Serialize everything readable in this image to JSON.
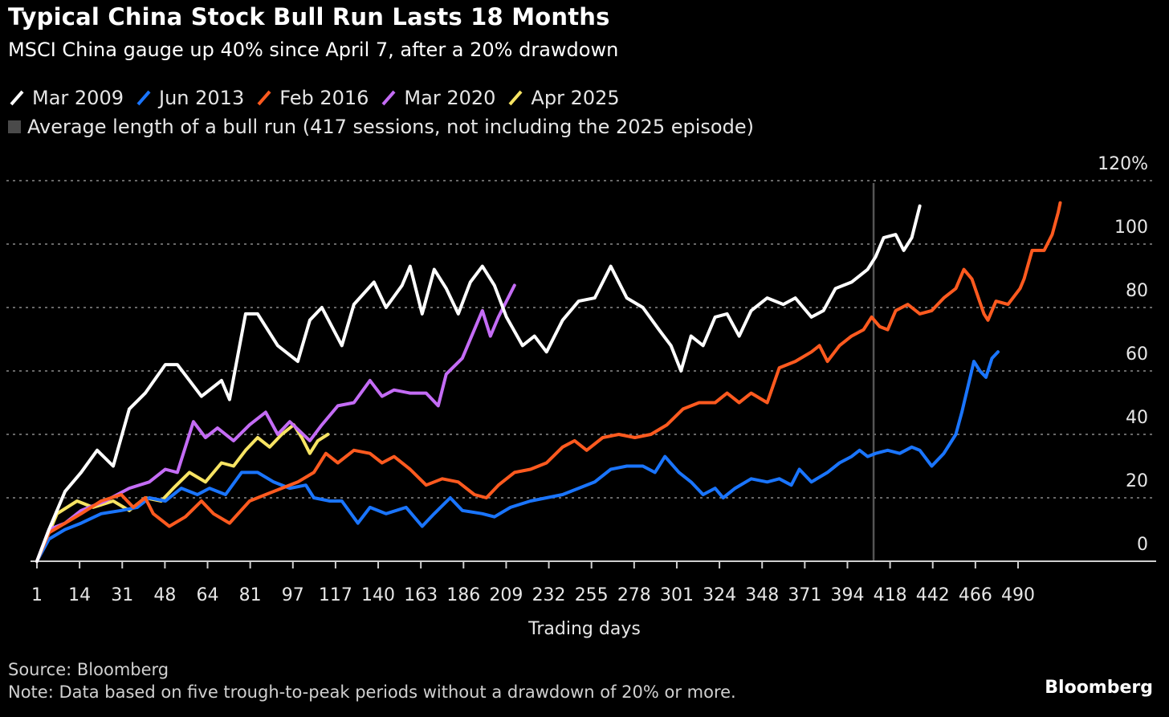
{
  "chart_data": {
    "type": "line",
    "title": "Typical China Stock Bull Run Lasts 18 Months",
    "subtitle": "MSCI China gauge up 40% since April 7, after a 20% drawdown",
    "xlabel": "Trading days",
    "ylabel": "",
    "xlim": [
      1,
      490
    ],
    "ylim": [
      0,
      120
    ],
    "x_ticks": [
      "1",
      "14",
      "31",
      "48",
      "64",
      "81",
      "97",
      "117",
      "140",
      "163",
      "186",
      "209",
      "232",
      "255",
      "278",
      "301",
      "324",
      "348",
      "371",
      "394",
      "418",
      "442",
      "466",
      "490"
    ],
    "y_ticks": [
      {
        "value": 0,
        "label": "0"
      },
      {
        "value": 20,
        "label": "20"
      },
      {
        "value": 40,
        "label": "40"
      },
      {
        "value": 60,
        "label": "60"
      },
      {
        "value": 80,
        "label": "80"
      },
      {
        "value": 100,
        "label": "100"
      },
      {
        "value": 120,
        "label": "120%"
      }
    ],
    "grid": true,
    "legend_placement": "top-left",
    "average_marker": {
      "label": "Average length of a bull run (417 sessions, not including the 2025 episode)",
      "day": 418,
      "color": "#4a4a4a"
    },
    "series": [
      {
        "name": "Apr 2025",
        "color": "#f7e463",
        "x": [
          1,
          11,
          21,
          29,
          39,
          47,
          55,
          63,
          69,
          77,
          85,
          93,
          99,
          105,
          111,
          117,
          123,
          129,
          133,
          137,
          141,
          146
        ],
        "y": [
          0,
          15,
          19,
          17,
          19,
          16,
          20,
          19,
          23,
          28,
          25,
          31,
          30,
          35,
          39,
          36,
          40,
          43,
          39,
          34,
          38,
          40
        ]
      },
      {
        "name": "Mar 2020",
        "color": "#c46cf5",
        "x": [
          1,
          7,
          15,
          23,
          35,
          47,
          57,
          65,
          71,
          79,
          85,
          91,
          99,
          107,
          115,
          121,
          127,
          137,
          143,
          151,
          159,
          167,
          173,
          179,
          187,
          195,
          201,
          205,
          213,
          219,
          223,
          227,
          231,
          235,
          239
        ],
        "y": [
          0,
          10,
          12,
          16,
          19,
          23,
          25,
          29,
          28,
          44,
          39,
          42,
          38,
          43,
          47,
          40,
          44,
          38,
          43,
          49,
          50,
          57,
          52,
          54,
          53,
          53,
          49,
          59,
          64,
          73,
          79,
          71,
          77,
          82,
          87
        ]
      },
      {
        "name": "Jun 2013",
        "color": "#1a75ff",
        "x": [
          1,
          7,
          15,
          23,
          33,
          43,
          51,
          57,
          65,
          73,
          81,
          87,
          95,
          103,
          111,
          119,
          127,
          135,
          139,
          147,
          153,
          161,
          167,
          175,
          185,
          193,
          199,
          207,
          213,
          223,
          229,
          237,
          247,
          255,
          263,
          271,
          279,
          287,
          295,
          303,
          309,
          314,
          321,
          327,
          333,
          339,
          343,
          349,
          357,
          365,
          371,
          377,
          381,
          387,
          395,
          401,
          407,
          411,
          415,
          419,
          425,
          431,
          437,
          441,
          447,
          453,
          459,
          462,
          465,
          468,
          471,
          474,
          477,
          480
        ],
        "y": [
          0,
          7,
          10,
          12,
          15,
          16,
          17,
          20,
          19,
          23,
          21,
          23,
          21,
          28,
          28,
          25,
          23,
          24,
          20,
          19,
          19,
          12,
          17,
          15,
          17,
          11,
          15,
          20,
          16,
          15,
          14,
          17,
          19,
          20,
          21,
          23,
          25,
          29,
          30,
          30,
          28,
          33,
          28,
          25,
          21,
          23,
          20,
          23,
          26,
          25,
          26,
          24,
          29,
          25,
          28,
          31,
          33,
          35,
          33,
          34,
          35,
          34,
          36,
          35,
          30,
          34,
          40,
          47,
          55,
          63,
          60,
          58,
          64,
          66
        ]
      },
      {
        "name": "Feb 2016",
        "color": "#ff5a1f",
        "x": [
          1,
          7,
          15,
          23,
          33,
          43,
          49,
          55,
          59,
          67,
          75,
          83,
          89,
          97,
          107,
          115,
          123,
          131,
          139,
          145,
          151,
          159,
          167,
          173,
          179,
          187,
          195,
          203,
          211,
          219,
          225,
          231,
          239,
          247,
          255,
          263,
          269,
          275,
          283,
          291,
          299,
          307,
          315,
          323,
          331,
          339,
          345,
          351,
          357,
          365,
          371,
          379,
          387,
          391,
          395,
          401,
          407,
          413,
          417,
          421,
          425,
          429,
          435,
          441,
          447,
          453,
          459,
          463,
          467,
          473,
          475,
          479,
          485,
          491,
          493,
          497,
          503,
          507,
          510,
          511
        ],
        "y": [
          0,
          9,
          12,
          15,
          19,
          21,
          17,
          20,
          15,
          11,
          14,
          19,
          15,
          12,
          19,
          21,
          23,
          25,
          28,
          34,
          31,
          35,
          34,
          31,
          33,
          29,
          24,
          26,
          25,
          21,
          20,
          24,
          28,
          29,
          31,
          36,
          38,
          35,
          39,
          40,
          39,
          40,
          43,
          48,
          50,
          50,
          53,
          50,
          53,
          50,
          61,
          63,
          66,
          68,
          63,
          68,
          71,
          73,
          77,
          74,
          73,
          79,
          81,
          78,
          79,
          83,
          86,
          92,
          89,
          78,
          76,
          82,
          81,
          86,
          89,
          98,
          98,
          103,
          110,
          113
        ]
      },
      {
        "name": "Mar 2009",
        "color": "#ffffff",
        "x": [
          1,
          7,
          15,
          23,
          31,
          39,
          47,
          55,
          65,
          71,
          83,
          93,
          97,
          105,
          111,
          121,
          131,
          137,
          143,
          153,
          159,
          169,
          175,
          183,
          187,
          193,
          199,
          205,
          211,
          217,
          223,
          229,
          235,
          243,
          249,
          255,
          263,
          271,
          279,
          287,
          295,
          303,
          311,
          317,
          322,
          327,
          333,
          339,
          345,
          351,
          357,
          365,
          373,
          379,
          387,
          393,
          399,
          407,
          415,
          419,
          423,
          429,
          433,
          437,
          441
        ],
        "y": [
          0,
          10,
          22,
          28,
          35,
          30,
          48,
          53,
          62,
          62,
          52,
          57,
          51,
          78,
          78,
          68,
          63,
          76,
          80,
          68,
          81,
          88,
          80,
          87,
          93,
          78,
          92,
          86,
          78,
          88,
          93,
          87,
          77,
          68,
          71,
          66,
          76,
          82,
          83,
          93,
          83,
          80,
          73,
          68,
          60,
          71,
          68,
          77,
          78,
          71,
          79,
          83,
          81,
          83,
          77,
          79,
          86,
          88,
          92,
          96,
          102,
          103,
          98,
          102,
          112
        ]
      }
    ]
  },
  "legend": {
    "items": [
      "Mar 2009",
      "Jun 2013",
      "Feb 2016",
      "Mar 2020",
      "Apr 2025"
    ],
    "colors": [
      "#ffffff",
      "#1a75ff",
      "#ff5a1f",
      "#c46cf5",
      "#f7e463"
    ],
    "average_label": "Average length of a bull run (417 sessions, not including the 2025 episode)"
  },
  "footer": {
    "source": "Source: Bloomberg",
    "note": "Note: Data based on five trough-to-peak periods without a drawdown of 20% or more.",
    "brand": "Bloomberg"
  }
}
